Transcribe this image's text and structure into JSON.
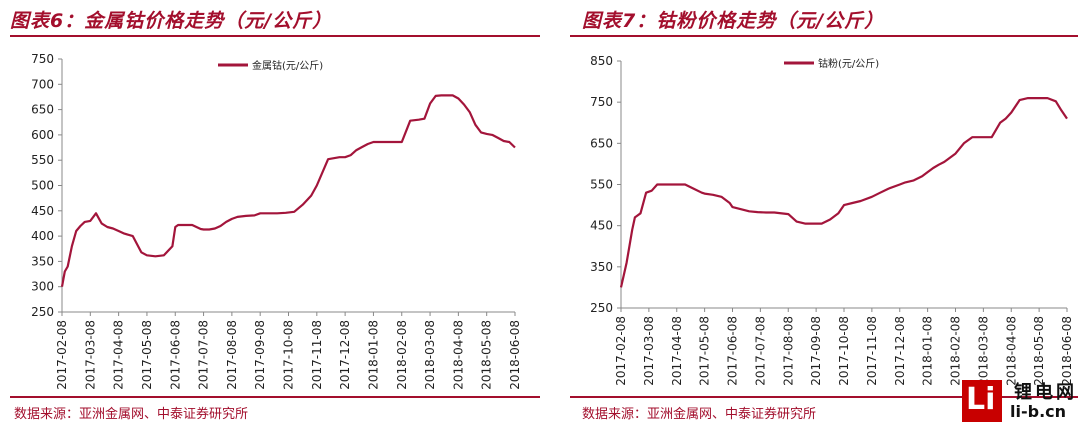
{
  "left": {
    "title": "图表6：金属钴价格走势（元/公斤）",
    "source": "数据来源：亚洲金属网、中泰证券研究所"
  },
  "right": {
    "title": "图表7：钴粉价格走势（元/公斤）",
    "source": "数据来源：亚洲金属网、中泰证券研究所"
  },
  "logo": {
    "mark": "Li",
    "name_cn": "锂电网",
    "name_en": "li-b.cn"
  },
  "colors": {
    "accent": "#a30f2d",
    "line": "#a3153b",
    "logo": "#c80000"
  },
  "chart_data": [
    {
      "type": "line",
      "title": "",
      "legend_position": "top-center",
      "x_tick_labels": [
        "2017-02-08",
        "2017-03-08",
        "2017-04-08",
        "2017-05-08",
        "2017-06-08",
        "2017-07-08",
        "2017-08-08",
        "2017-09-08",
        "2017-10-08",
        "2017-11-08",
        "2017-12-08",
        "2018-01-08",
        "2018-02-08",
        "2018-03-08",
        "2018-04-08",
        "2018-05-08",
        "2018-06-08"
      ],
      "y_tick_labels": [
        250,
        300,
        350,
        400,
        450,
        500,
        550,
        600,
        650,
        700,
        750
      ],
      "ylim": [
        250,
        750
      ],
      "grid": false,
      "series": [
        {
          "name": "金属钴(元/公斤)",
          "x": [
            0,
            0.1,
            0.2,
            0.35,
            0.5,
            0.65,
            0.8,
            1.0,
            1.2,
            1.4,
            1.6,
            1.8,
            2.0,
            2.2,
            2.5,
            2.8,
            3.0,
            3.3,
            3.6,
            3.9,
            4.0,
            4.1,
            4.3,
            4.6,
            4.9,
            5.0,
            5.2,
            5.4,
            5.6,
            5.8,
            6.0,
            6.2,
            6.5,
            6.8,
            7.0,
            7.3,
            7.6,
            7.9,
            8.2,
            8.5,
            8.8,
            9.0,
            9.4,
            9.8,
            10.0,
            10.2,
            10.4,
            10.6,
            10.8,
            11.0,
            11.2,
            11.5,
            11.8,
            12.0,
            12.3,
            12.6,
            12.8,
            13.0,
            13.2,
            13.4,
            13.6,
            13.8,
            14.0,
            14.2,
            14.4,
            14.6,
            14.8,
            15.0,
            15.2,
            15.4,
            15.6,
            15.8,
            16.0
          ],
          "values": [
            300,
            330,
            340,
            380,
            410,
            420,
            428,
            430,
            445,
            425,
            418,
            415,
            410,
            405,
            400,
            368,
            362,
            360,
            362,
            380,
            418,
            422,
            422,
            422,
            414,
            413,
            413,
            415,
            420,
            428,
            434,
            438,
            440,
            441,
            445,
            445,
            445,
            446,
            448,
            462,
            480,
            500,
            552,
            556,
            556,
            560,
            570,
            576,
            582,
            586,
            586,
            586,
            586,
            586,
            628,
            630,
            632,
            662,
            677,
            678,
            678,
            678,
            672,
            660,
            645,
            620,
            605,
            602,
            600,
            594,
            588,
            586,
            575
          ]
        }
      ]
    },
    {
      "type": "line",
      "title": "",
      "legend_position": "top-center",
      "x_tick_labels": [
        "2017-02-08",
        "2017-03-08",
        "2017-04-08",
        "2017-05-08",
        "2017-06-08",
        "2017-07-08",
        "2017-08-08",
        "2017-09-08",
        "2017-10-08",
        "2017-11-08",
        "2017-12-08",
        "2018-01-08",
        "2018-02-08",
        "2018-03-08",
        "2018-04-08",
        "2018-05-08",
        "2018-06-08"
      ],
      "y_tick_labels": [
        250,
        350,
        450,
        550,
        650,
        750,
        850
      ],
      "ylim": [
        250,
        850
      ],
      "grid": false,
      "series": [
        {
          "name": "钴粉(元/公斤)",
          "x": [
            0,
            0.1,
            0.2,
            0.3,
            0.4,
            0.5,
            0.7,
            0.9,
            1.1,
            1.3,
            1.5,
            1.8,
            2.0,
            2.3,
            2.6,
            2.9,
            3.0,
            3.3,
            3.6,
            3.9,
            4.0,
            4.3,
            4.6,
            4.9,
            5.2,
            5.5,
            6.0,
            6.3,
            6.6,
            6.9,
            7.2,
            7.5,
            7.8,
            8.0,
            8.3,
            8.6,
            9.0,
            9.3,
            9.6,
            10.0,
            10.2,
            10.5,
            10.8,
            11.0,
            11.2,
            11.4,
            11.6,
            11.8,
            12.0,
            12.3,
            12.6,
            12.8,
            13.0,
            13.3,
            13.6,
            13.8,
            14.0,
            14.3,
            14.6,
            14.9,
            15.0,
            15.3,
            15.6,
            15.8,
            16.0
          ],
          "values": [
            300,
            330,
            360,
            400,
            440,
            470,
            480,
            530,
            535,
            550,
            550,
            550,
            550,
            550,
            540,
            530,
            528,
            525,
            520,
            505,
            495,
            490,
            485,
            483,
            482,
            482,
            478,
            460,
            455,
            455,
            455,
            465,
            480,
            500,
            505,
            510,
            520,
            530,
            540,
            550,
            555,
            560,
            570,
            580,
            590,
            598,
            605,
            615,
            625,
            650,
            665,
            665,
            665,
            665,
            700,
            710,
            725,
            755,
            760,
            760,
            760,
            760,
            752,
            730,
            710
          ]
        }
      ]
    }
  ]
}
